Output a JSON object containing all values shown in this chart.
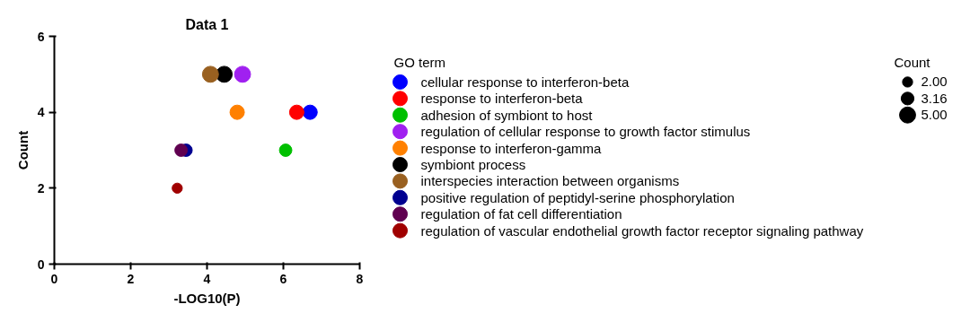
{
  "chart_data": {
    "type": "bubble",
    "title": "Data 1",
    "xlabel": "-LOG10(P)",
    "ylabel": "Count",
    "legend_title": "GO term",
    "xlim": [
      0,
      8
    ],
    "xticks": [
      0,
      2,
      4,
      6,
      8
    ],
    "ylim": [
      0,
      6
    ],
    "yticks": [
      0,
      2,
      4,
      6
    ],
    "grid": false,
    "legend": "right",
    "marker": "circle",
    "annotations": [
      "Count"
    ],
    "size_legend": [
      {
        "value": 2,
        "label": "2.00"
      },
      {
        "value": 3.16,
        "label": "3.16"
      },
      {
        "value": 5,
        "label": "5.00"
      }
    ],
    "series": [
      {
        "name": "cellular response to interferon-beta",
        "color": "#0000ff",
        "x": [
          6.7
        ],
        "values": [
          4
        ],
        "sizes": [
          4
        ]
      },
      {
        "name": "response to interferon-beta",
        "color": "#ff0000",
        "x": [
          6.35
        ],
        "values": [
          4
        ],
        "sizes": [
          4
        ]
      },
      {
        "name": "adhesion of symbiont to host",
        "color": "#00c000",
        "x": [
          6.06
        ],
        "values": [
          3
        ],
        "sizes": [
          3
        ]
      },
      {
        "name": "regulation of cellular response to growth factor stimulus",
        "color": "#a020f0",
        "x": [
          4.93
        ],
        "values": [
          5
        ],
        "sizes": [
          5
        ]
      },
      {
        "name": "response to interferon-gamma",
        "color": "#ff8000",
        "x": [
          4.79
        ],
        "values": [
          4
        ],
        "sizes": [
          4
        ]
      },
      {
        "name": "symbiont process",
        "color": "#000000",
        "x": [
          4.45
        ],
        "values": [
          5
        ],
        "sizes": [
          5
        ]
      },
      {
        "name": "interspecies interaction between organisms",
        "color": "#996020",
        "x": [
          4.09
        ],
        "values": [
          5
        ],
        "sizes": [
          5
        ]
      },
      {
        "name": "positive regulation of peptidyl-serine phosphorylation",
        "color": "#000090",
        "x": [
          3.45
        ],
        "values": [
          3
        ],
        "sizes": [
          3
        ]
      },
      {
        "name": "regulation of fat cell differentiation",
        "color": "#600050",
        "x": [
          3.32
        ],
        "values": [
          3
        ],
        "sizes": [
          3
        ]
      },
      {
        "name": "regulation of vascular endothelial growth factor receptor signaling pathway",
        "color": "#a00000",
        "x": [
          3.22
        ],
        "values": [
          2
        ],
        "sizes": [
          2
        ]
      }
    ]
  }
}
